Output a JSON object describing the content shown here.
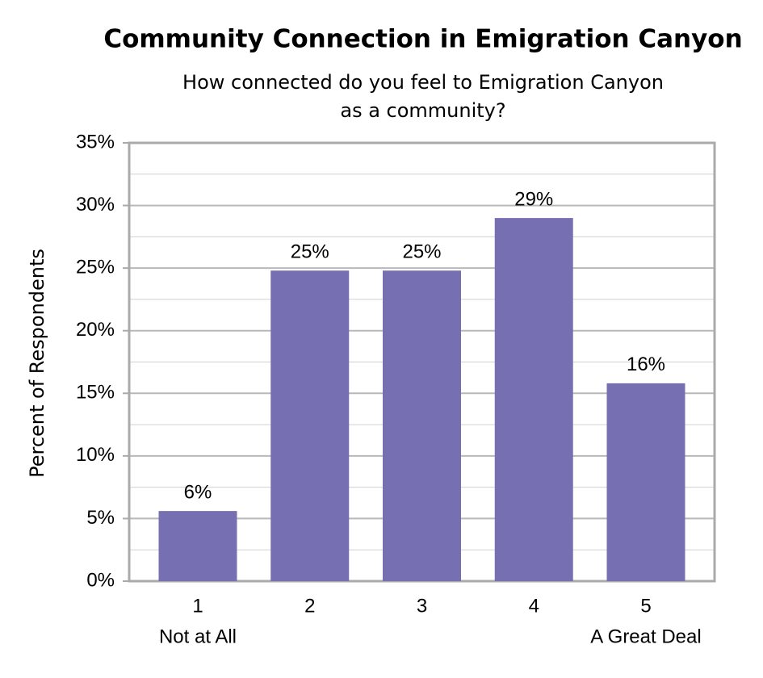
{
  "chart_data": {
    "type": "bar",
    "title": "Community Connection in Emigration Canyon",
    "subtitle": [
      "How connected do you feel to Emigration Canyon",
      "as a community?"
    ],
    "y_label": "Percent of Respondents",
    "categories": [
      "1",
      "2",
      "3",
      "4",
      "5"
    ],
    "category_sublabels": [
      "Not at All",
      null,
      null,
      null,
      "A Great Deal"
    ],
    "values": [
      5.6,
      24.8,
      24.8,
      29,
      15.8
    ],
    "value_labels": [
      "6%",
      "25%",
      "25%",
      "29%",
      "16%"
    ],
    "color": "#7670b3",
    "ylim": [
      0,
      35
    ],
    "yticks": [
      {
        "value": 0,
        "label": "0%"
      },
      {
        "value": 5,
        "label": "5%"
      },
      {
        "value": 10,
        "label": "10%"
      },
      {
        "value": 15,
        "label": "15%"
      },
      {
        "value": 20,
        "label": "20%"
      },
      {
        "value": 25,
        "label": "25%"
      },
      {
        "value": 30,
        "label": "30%"
      },
      {
        "value": 35,
        "label": "35%"
      }
    ],
    "minor_yticks": [
      2.5,
      7.5,
      12.5,
      17.5,
      22.5,
      27.5,
      32.5
    ],
    "grid": true
  }
}
